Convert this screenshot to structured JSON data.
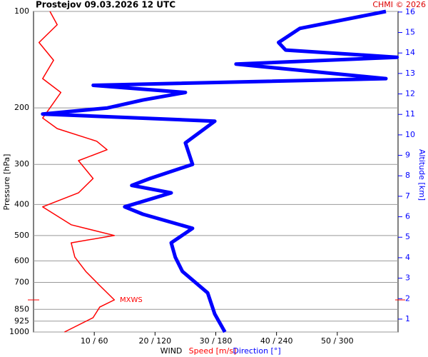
{
  "chart_data": {
    "type": "wind-profile",
    "title": "Prostejov    09.03.2026 12 UTC",
    "credit": "CHMI © 2026",
    "ylabel": "Pressure [hPa]",
    "y2label": "Altitude [km]",
    "xlabel": "WIND",
    "ylim": [
      1000,
      100
    ],
    "yscale": "log",
    "yticks": [
      100,
      200,
      300,
      400,
      500,
      600,
      700,
      850,
      925,
      1000
    ],
    "xlim": [
      0,
      60
    ],
    "x2lim": [
      0,
      360
    ],
    "xticks": [
      {
        "value": 10,
        "label": "10 / 60"
      },
      {
        "value": 20,
        "label": "20 / 120"
      },
      {
        "value": 30,
        "label": "30 / 180"
      },
      {
        "value": 40,
        "label": "40 / 240"
      },
      {
        "value": 50,
        "label": "50 / 300"
      }
    ],
    "y2lim": [
      0.37,
      16.03
    ],
    "y2ticks": [
      1,
      2,
      3,
      4,
      5,
      6,
      7,
      8,
      9,
      10,
      11,
      12,
      13,
      14,
      15,
      16
    ],
    "grid": true,
    "series": [
      {
        "name": "Speed [m/s]",
        "color": "#ff0000",
        "axis": "x",
        "pressure": [
          1000,
          902,
          836,
          794,
          716,
          647,
          584,
          527,
          500,
          463,
          407,
          368,
          332,
          292,
          270,
          254,
          232,
          215,
          200,
          179,
          162,
          142,
          125,
          110,
          100
        ],
        "values": [
          5.1,
          9.8,
          10.9,
          13.3,
          10.9,
          8.6,
          6.8,
          6.2,
          13.3,
          6.2,
          1.5,
          7.4,
          9.8,
          7.4,
          12.1,
          10.4,
          3.9,
          1.5,
          2.7,
          4.5,
          1.5,
          3.3,
          0.9,
          3.9,
          2.7
        ]
      },
      {
        "name": "Direction [°]",
        "color": "#0000ff",
        "axis": "x2",
        "pressure": [
          1000,
          879,
          755,
          647,
          584,
          527,
          475,
          429,
          407,
          368,
          349,
          332,
          300,
          257,
          220,
          209,
          200,
          189,
          179,
          170,
          162,
          146,
          139,
          132,
          125,
          113,
          102,
          100
        ],
        "values": [
          189,
          179,
          172,
          147,
          140,
          136,
          157,
          108,
          90,
          136,
          97,
          115,
          157,
          150,
          179,
          9,
          73,
          108,
          150,
          59,
          348,
          200,
          359,
          249,
          242,
          263,
          334,
          348
        ]
      }
    ],
    "annotation": {
      "text": "MXWS",
      "pressure": 794
    }
  }
}
